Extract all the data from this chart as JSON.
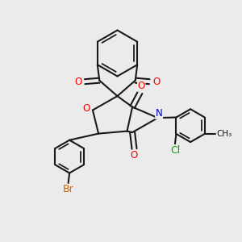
{
  "background_color": "#ebebeb",
  "bond_color": "#1a1a1a",
  "bond_width": 1.5,
  "atom_colors": {
    "O": "#ff0000",
    "N": "#0000cd",
    "Br": "#cc6600",
    "Cl": "#00aa00",
    "C": "#1a1a1a"
  },
  "font_size_atoms": 8.5
}
